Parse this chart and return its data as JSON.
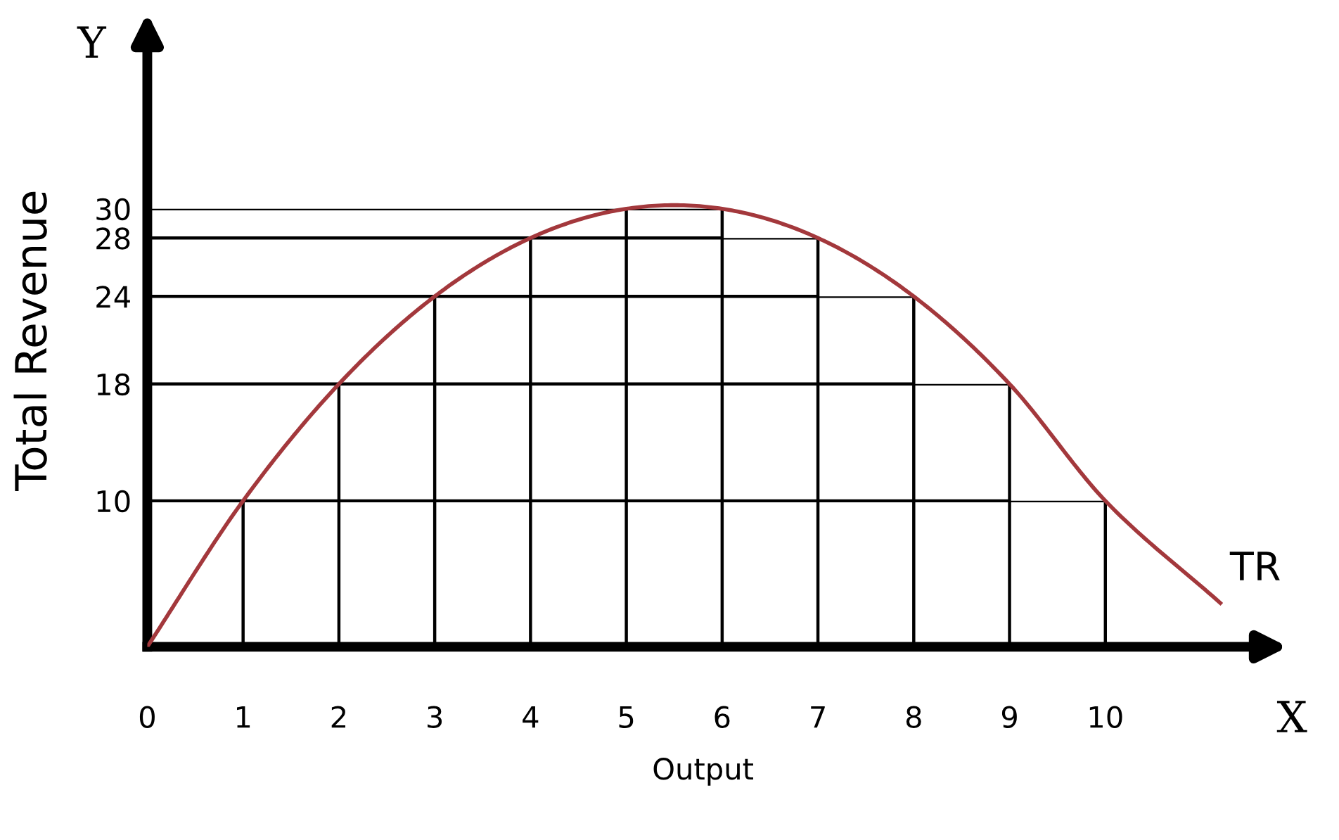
{
  "chart_data": {
    "type": "line",
    "xlabel": "Output",
    "ylabel": "Total Revenue",
    "x": [
      0,
      1,
      2,
      3,
      4,
      5,
      6,
      7,
      8,
      9,
      10,
      11.2
    ],
    "series": [
      {
        "name": "TR",
        "color": "#a3383c",
        "values": [
          0,
          10,
          18,
          24,
          28,
          30,
          30,
          28,
          24,
          18,
          10,
          3
        ]
      }
    ],
    "xlim": [
      0,
      11.6
    ],
    "ylim": [
      0,
      42
    ],
    "xticks": [
      0,
      1,
      2,
      3,
      4,
      5,
      6,
      7,
      8,
      9,
      10
    ],
    "yticks": [
      10,
      18,
      24,
      28,
      30
    ],
    "grid": true,
    "marker": "none",
    "line_style": "solid",
    "annotations": [
      "Y",
      "X"
    ]
  }
}
